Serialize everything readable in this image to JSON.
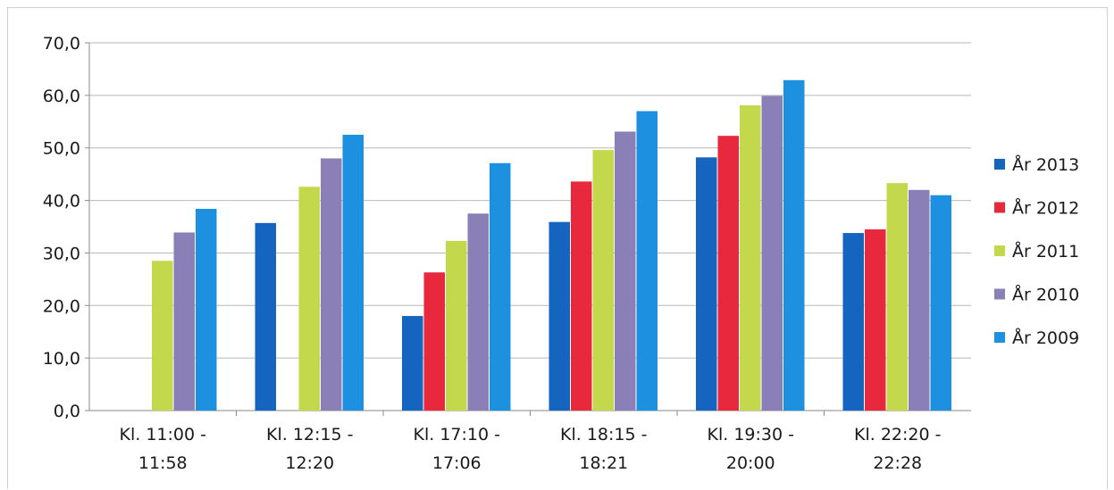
{
  "chart_data": {
    "type": "bar",
    "title": "",
    "xlabel": "",
    "ylabel": "",
    "ylim": [
      0,
      70
    ],
    "yticks": [
      "0,0",
      "10,0",
      "20,0",
      "30,0",
      "40,0",
      "50,0",
      "60,0",
      "70,0"
    ],
    "grid": "horizontal",
    "legend_position": "right",
    "categories": [
      [
        "Kl. 11:00 -",
        "11:58"
      ],
      [
        "Kl. 12:15 -",
        "12:20"
      ],
      [
        "Kl. 17:10 -",
        "17:06"
      ],
      [
        "Kl. 18:15 -",
        "18:21"
      ],
      [
        "Kl. 19:30 -",
        "20:00"
      ],
      [
        "Kl. 22:20 -",
        "22:28"
      ]
    ],
    "series": [
      {
        "name": "År 2013",
        "color": "#1565c0",
        "values": [
          null,
          35.7,
          18.0,
          35.9,
          48.2,
          33.8
        ]
      },
      {
        "name": "År 2012",
        "color": "#e8283c",
        "values": [
          null,
          null,
          26.3,
          43.6,
          52.3,
          34.5
        ]
      },
      {
        "name": "År 2011",
        "color": "#c3d84a",
        "values": [
          28.5,
          42.6,
          32.3,
          49.6,
          58.1,
          43.3
        ]
      },
      {
        "name": "År 2010",
        "color": "#8b7fb8",
        "values": [
          33.9,
          48.0,
          37.5,
          53.1,
          59.9,
          42.0
        ]
      },
      {
        "name": "År 2009",
        "color": "#1e90e0",
        "values": [
          38.4,
          52.5,
          47.1,
          57.0,
          62.9,
          41.0
        ]
      }
    ]
  }
}
